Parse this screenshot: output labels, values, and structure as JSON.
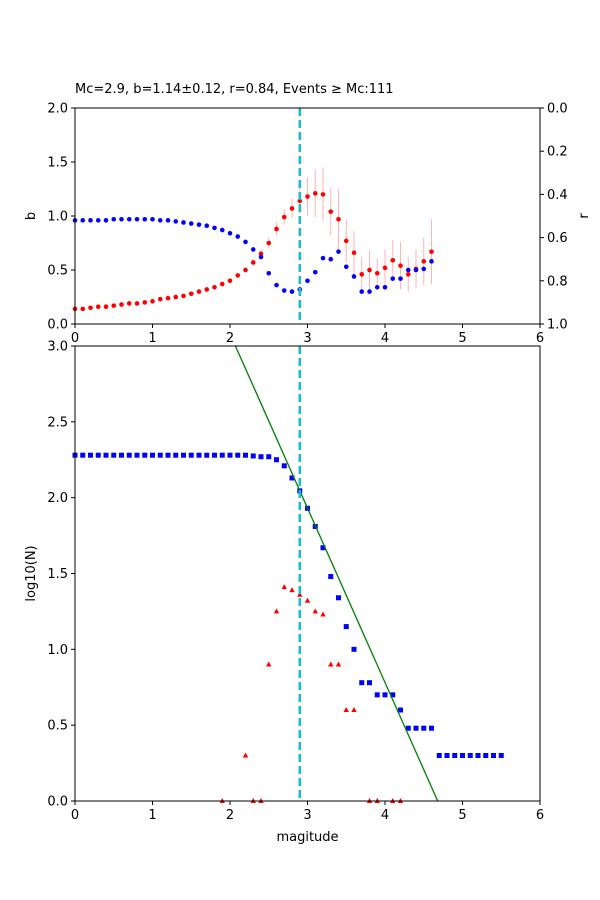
{
  "chart_data": [
    {
      "type": "scatter",
      "title": "Mc=2.9, b=1.14±0.12, r=0.84, Events ≥ Mc:111",
      "xlabel": "",
      "ylabel": "b",
      "y2label": "r",
      "xlim": [
        0,
        6
      ],
      "ylim": [
        0,
        2
      ],
      "y2lim": [
        1,
        0
      ],
      "x_ticks": [
        "0",
        "1",
        "2",
        "3",
        "4",
        "5",
        "6"
      ],
      "y_ticks": [
        "0.0",
        "0.5",
        "1.0",
        "1.5",
        "2.0"
      ],
      "y2_ticks": [
        "0.0",
        "0.2",
        "0.4",
        "0.6",
        "0.8",
        "1.0"
      ],
      "mc_line": 2.9,
      "colors": {
        "b": "#ff0000",
        "r": "#0000ff",
        "errorbar": "#ffb3b3",
        "mc_line": "#17becf"
      },
      "series": [
        {
          "axis": "left",
          "color": "#ff0000",
          "marker": "circle",
          "x": [
            0,
            0.1,
            0.2,
            0.3,
            0.4,
            0.5,
            0.6,
            0.7,
            0.8,
            0.9,
            1.0,
            1.1,
            1.2,
            1.3,
            1.4,
            1.5,
            1.6,
            1.7,
            1.8,
            1.9,
            2.0,
            2.1,
            2.2,
            2.3,
            2.4,
            2.5,
            2.6,
            2.7,
            2.8,
            2.9,
            3.0,
            3.1,
            3.2,
            3.3,
            3.4,
            3.5,
            3.6,
            3.7,
            3.8,
            3.9,
            4.0,
            4.1,
            4.2,
            4.3,
            4.4,
            4.5,
            4.6
          ],
          "values": [
            0.14,
            0.14,
            0.15,
            0.16,
            0.16,
            0.17,
            0.18,
            0.19,
            0.19,
            0.2,
            0.21,
            0.23,
            0.24,
            0.25,
            0.26,
            0.28,
            0.3,
            0.32,
            0.34,
            0.37,
            0.4,
            0.45,
            0.5,
            0.57,
            0.65,
            0.75,
            0.88,
            0.99,
            1.07,
            1.14,
            1.18,
            1.21,
            1.2,
            1.04,
            0.97,
            0.77,
            0.66,
            0.46,
            0.5,
            0.47,
            0.52,
            0.59,
            0.54,
            0.46,
            0.51,
            0.58,
            0.67
          ],
          "error": [
            0.01,
            0.01,
            0.01,
            0.01,
            0.01,
            0.01,
            0.01,
            0.01,
            0.01,
            0.01,
            0.01,
            0.01,
            0.01,
            0.01,
            0.01,
            0.01,
            0.01,
            0.01,
            0.01,
            0.02,
            0.02,
            0.02,
            0.03,
            0.03,
            0.04,
            0.05,
            0.06,
            0.07,
            0.09,
            0.12,
            0.18,
            0.22,
            0.25,
            0.22,
            0.28,
            0.2,
            0.2,
            0.16,
            0.18,
            0.14,
            0.17,
            0.19,
            0.22,
            0.16,
            0.18,
            0.22,
            0.3
          ]
        },
        {
          "axis": "right",
          "color": "#0000ff",
          "marker": "circle",
          "x": [
            0,
            0.1,
            0.2,
            0.3,
            0.4,
            0.5,
            0.6,
            0.7,
            0.8,
            0.9,
            1.0,
            1.1,
            1.2,
            1.3,
            1.4,
            1.5,
            1.6,
            1.7,
            1.8,
            1.9,
            2.0,
            2.1,
            2.2,
            2.3,
            2.4,
            2.5,
            2.6,
            2.7,
            2.8,
            2.9,
            3.0,
            3.1,
            3.2,
            3.3,
            3.4,
            3.5,
            3.6,
            3.7,
            3.8,
            3.9,
            4.0,
            4.1,
            4.2,
            4.3,
            4.4,
            4.5,
            4.6
          ],
          "values": [
            0.52,
            0.52,
            0.52,
            0.52,
            0.52,
            0.515,
            0.515,
            0.515,
            0.515,
            0.515,
            0.515,
            0.52,
            0.52,
            0.525,
            0.53,
            0.535,
            0.54,
            0.545,
            0.555,
            0.565,
            0.58,
            0.595,
            0.62,
            0.655,
            0.69,
            0.765,
            0.82,
            0.845,
            0.85,
            0.84,
            0.8,
            0.76,
            0.695,
            0.7,
            0.665,
            0.735,
            0.78,
            0.85,
            0.85,
            0.83,
            0.83,
            0.79,
            0.79,
            0.75,
            0.75,
            0.745,
            0.71
          ]
        }
      ]
    },
    {
      "type": "scatter",
      "title": "",
      "xlabel": "magitude",
      "ylabel": "log10(N)",
      "xlim": [
        0,
        6
      ],
      "ylim": [
        0,
        3
      ],
      "x_ticks": [
        "0",
        "1",
        "2",
        "3",
        "4",
        "5",
        "6"
      ],
      "y_ticks": [
        "0.0",
        "0.5",
        "1.0",
        "1.5",
        "2.0",
        "2.5",
        "3.0"
      ],
      "mc_line": 2.9,
      "colors": {
        "cumulative": "#0000ff",
        "noncumulative": "#ff0000",
        "fit": "#008000",
        "mc_line": "#17becf"
      },
      "fit_line": {
        "x": [
          2.07,
          4.68
        ],
        "y": [
          3.0,
          0.0
        ]
      },
      "series": [
        {
          "color": "#0000ff",
          "marker": "square",
          "x": [
            0,
            0.1,
            0.2,
            0.3,
            0.4,
            0.5,
            0.6,
            0.7,
            0.8,
            0.9,
            1.0,
            1.1,
            1.2,
            1.3,
            1.4,
            1.5,
            1.6,
            1.7,
            1.8,
            1.9,
            2.0,
            2.1,
            2.2,
            2.3,
            2.4,
            2.5,
            2.6,
            2.7,
            2.8,
            2.9,
            3.0,
            3.1,
            3.2,
            3.3,
            3.4,
            3.5,
            3.6,
            3.7,
            3.8,
            3.9,
            4.0,
            4.1,
            4.2,
            4.3,
            4.4,
            4.5,
            4.6,
            4.7,
            4.8,
            4.9,
            5.0,
            5.1,
            5.2,
            5.3,
            5.4,
            5.5
          ],
          "values": [
            2.28,
            2.28,
            2.28,
            2.28,
            2.28,
            2.28,
            2.28,
            2.28,
            2.28,
            2.28,
            2.28,
            2.28,
            2.28,
            2.28,
            2.28,
            2.28,
            2.28,
            2.28,
            2.28,
            2.28,
            2.28,
            2.28,
            2.28,
            2.275,
            2.27,
            2.27,
            2.25,
            2.21,
            2.13,
            2.045,
            1.93,
            1.81,
            1.67,
            1.48,
            1.34,
            1.15,
            1.0,
            0.78,
            0.78,
            0.7,
            0.7,
            0.7,
            0.6,
            0.48,
            0.48,
            0.48,
            0.48,
            0.3,
            0.3,
            0.3,
            0.3,
            0.3,
            0.3,
            0.3,
            0.3,
            0.3
          ]
        },
        {
          "color": "#ff0000",
          "marker": "triangle",
          "x": [
            1.9,
            2.2,
            2.3,
            2.4,
            2.5,
            2.6,
            2.7,
            2.8,
            2.9,
            3.0,
            3.1,
            3.2,
            3.3,
            3.4,
            3.5,
            3.6,
            3.8,
            3.9,
            4.1,
            4.2
          ],
          "values": [
            0,
            0.3,
            0,
            0,
            0.9,
            1.25,
            1.41,
            1.39,
            1.36,
            1.32,
            1.25,
            1.23,
            0.9,
            0.9,
            0.6,
            0.6,
            0,
            0,
            0,
            0
          ]
        }
      ]
    }
  ]
}
